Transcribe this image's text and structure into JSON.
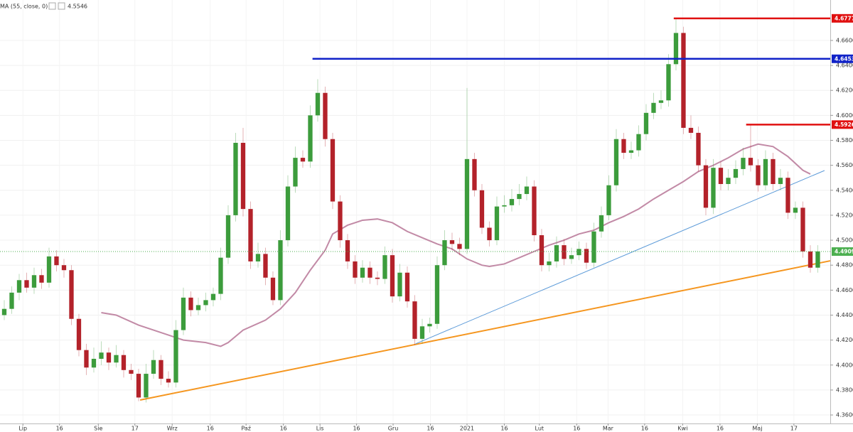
{
  "chart_data": {
    "type": "candlestick",
    "up_color": "#3c9c3c",
    "down_color": "#b3222a",
    "xlim": [
      -0.57,
      110.67
    ],
    "ylim": [
      4.3532,
      4.6924
    ],
    "xticks": [
      {
        "value": 2.5,
        "label": "Lip"
      },
      {
        "value": 7.4,
        "label": "16"
      },
      {
        "value": 12.6,
        "label": "Sie"
      },
      {
        "value": 17.5,
        "label": "17"
      },
      {
        "value": 22.5,
        "label": "Wrz"
      },
      {
        "value": 27.6,
        "label": "16"
      },
      {
        "value": 32.4,
        "label": "Paź"
      },
      {
        "value": 37.4,
        "label": "16"
      },
      {
        "value": 42.3,
        "label": "Lis"
      },
      {
        "value": 47.2,
        "label": "16"
      },
      {
        "value": 52.1,
        "label": "Gru"
      },
      {
        "value": 57.1,
        "label": "16"
      },
      {
        "value": 62,
        "label": "2021"
      },
      {
        "value": 67,
        "label": "16"
      },
      {
        "value": 71.7,
        "label": "Lut"
      },
      {
        "value": 76.7,
        "label": "16"
      },
      {
        "value": 80.9,
        "label": "Mar"
      },
      {
        "value": 85.8,
        "label": "16"
      },
      {
        "value": 90.9,
        "label": "Kwi"
      },
      {
        "value": 95.9,
        "label": "16"
      },
      {
        "value": 100.9,
        "label": "Maj"
      },
      {
        "value": 105.8,
        "label": "17"
      }
    ],
    "yticks": [
      {
        "value": 4.36,
        "label": "4.3600"
      },
      {
        "value": 4.38,
        "label": "4.3800"
      },
      {
        "value": 4.4,
        "label": "4.4000"
      },
      {
        "value": 4.42,
        "label": "4.4200"
      },
      {
        "value": 4.44,
        "label": "4.4400"
      },
      {
        "value": 4.46,
        "label": "4.4600"
      },
      {
        "value": 4.48,
        "label": "4.4800"
      },
      {
        "value": 4.5,
        "label": "4.5000"
      },
      {
        "value": 4.52,
        "label": "4.5200"
      },
      {
        "value": 4.54,
        "label": "4.5400"
      },
      {
        "value": 4.56,
        "label": "4.5600"
      },
      {
        "value": 4.58,
        "label": "4.5800"
      },
      {
        "value": 4.6,
        "label": "4.6000"
      },
      {
        "value": 4.62,
        "label": "4.6200"
      },
      {
        "value": 4.64,
        "label": "4.6400"
      },
      {
        "value": 4.66,
        "label": "4.6600"
      }
    ],
    "ohlc": [
      [
        4.44,
        4.452,
        4.436,
        4.445
      ],
      [
        4.445,
        4.463,
        4.441,
        4.458
      ],
      [
        4.458,
        4.473,
        4.452,
        4.468
      ],
      [
        4.468,
        4.474,
        4.458,
        4.462
      ],
      [
        4.462,
        4.478,
        4.457,
        4.472
      ],
      [
        4.472,
        4.477,
        4.461,
        4.466
      ],
      [
        4.466,
        4.494,
        4.462,
        4.487
      ],
      [
        4.487,
        4.492,
        4.475,
        4.48
      ],
      [
        4.48,
        4.485,
        4.47,
        4.476
      ],
      [
        4.476,
        4.48,
        4.432,
        4.437
      ],
      [
        4.437,
        4.441,
        4.407,
        4.412
      ],
      [
        4.412,
        4.417,
        4.392,
        4.398
      ],
      [
        4.398,
        4.414,
        4.394,
        4.405
      ],
      [
        4.405,
        4.419,
        4.4,
        4.41
      ],
      [
        4.41,
        4.414,
        4.396,
        4.402
      ],
      [
        4.402,
        4.416,
        4.398,
        4.408
      ],
      [
        4.408,
        4.412,
        4.39,
        4.396
      ],
      [
        4.396,
        4.401,
        4.388,
        4.393
      ],
      [
        4.393,
        4.397,
        4.371,
        4.374
      ],
      [
        4.374,
        4.401,
        4.37,
        4.393
      ],
      [
        4.393,
        4.412,
        4.389,
        4.404
      ],
      [
        4.404,
        4.408,
        4.384,
        4.389
      ],
      [
        4.389,
        4.395,
        4.382,
        4.386
      ],
      [
        4.386,
        4.436,
        4.382,
        4.428
      ],
      [
        4.428,
        4.462,
        4.424,
        4.454
      ],
      [
        4.454,
        4.459,
        4.439,
        4.444
      ],
      [
        4.444,
        4.454,
        4.44,
        4.448
      ],
      [
        4.448,
        4.458,
        4.443,
        4.452
      ],
      [
        4.452,
        4.462,
        4.447,
        4.457
      ],
      [
        4.457,
        4.494,
        4.452,
        4.486
      ],
      [
        4.486,
        4.528,
        4.481,
        4.52
      ],
      [
        4.52,
        4.586,
        4.515,
        4.578
      ],
      [
        4.578,
        4.59,
        4.519,
        4.525
      ],
      [
        4.525,
        4.531,
        4.477,
        4.483
      ],
      [
        4.483,
        4.498,
        4.478,
        4.489
      ],
      [
        4.489,
        4.494,
        4.464,
        4.47
      ],
      [
        4.47,
        4.475,
        4.448,
        4.452
      ],
      [
        4.452,
        4.508,
        4.448,
        4.5
      ],
      [
        4.5,
        4.552,
        4.495,
        4.543
      ],
      [
        4.543,
        4.575,
        4.538,
        4.566
      ],
      [
        4.566,
        4.572,
        4.558,
        4.563
      ],
      [
        4.563,
        4.608,
        4.558,
        4.6
      ],
      [
        4.6,
        4.629,
        4.595,
        4.618
      ],
      [
        4.618,
        4.623,
        4.575,
        4.581
      ],
      [
        4.581,
        4.586,
        4.525,
        4.531
      ],
      [
        4.531,
        4.536,
        4.494,
        4.5
      ],
      [
        4.5,
        4.505,
        4.477,
        4.483
      ],
      [
        4.483,
        4.488,
        4.465,
        4.47
      ],
      [
        4.47,
        4.484,
        4.466,
        4.478
      ],
      [
        4.478,
        4.483,
        4.465,
        4.47
      ],
      [
        4.47,
        4.475,
        4.464,
        4.469
      ],
      [
        4.469,
        4.495,
        4.465,
        4.488
      ],
      [
        4.488,
        4.493,
        4.45,
        4.455
      ],
      [
        4.455,
        4.481,
        4.451,
        4.474
      ],
      [
        4.474,
        4.479,
        4.446,
        4.451
      ],
      [
        4.451,
        4.456,
        4.416,
        4.421
      ],
      [
        4.421,
        4.437,
        4.417,
        4.431
      ],
      [
        4.431,
        4.438,
        4.426,
        4.433
      ],
      [
        4.433,
        4.487,
        4.429,
        4.48
      ],
      [
        4.48,
        4.508,
        4.476,
        4.5
      ],
      [
        4.5,
        4.506,
        4.492,
        4.497
      ],
      [
        4.497,
        4.502,
        4.488,
        4.493
      ],
      [
        4.493,
        4.622,
        4.489,
        4.565
      ],
      [
        4.565,
        4.57,
        4.535,
        4.54
      ],
      [
        4.54,
        4.545,
        4.505,
        4.51
      ],
      [
        4.51,
        4.515,
        4.495,
        4.5
      ],
      [
        4.5,
        4.535,
        4.496,
        4.527
      ],
      [
        4.527,
        4.536,
        4.522,
        4.528
      ],
      [
        4.528,
        4.541,
        4.523,
        4.533
      ],
      [
        4.533,
        4.545,
        4.528,
        4.537
      ],
      [
        4.537,
        4.551,
        4.532,
        4.543
      ],
      [
        4.543,
        4.548,
        4.499,
        4.504
      ],
      [
        4.504,
        4.509,
        4.475,
        4.48
      ],
      [
        4.48,
        4.49,
        4.475,
        4.483
      ],
      [
        4.483,
        4.503,
        4.478,
        4.496
      ],
      [
        4.496,
        4.501,
        4.48,
        4.485
      ],
      [
        4.485,
        4.494,
        4.481,
        4.488
      ],
      [
        4.488,
        4.499,
        4.484,
        4.493
      ],
      [
        4.493,
        4.498,
        4.477,
        4.482
      ],
      [
        4.482,
        4.514,
        4.478,
        4.507
      ],
      [
        4.507,
        4.527,
        4.502,
        4.52
      ],
      [
        4.52,
        4.552,
        4.516,
        4.544
      ],
      [
        4.544,
        4.589,
        4.539,
        4.581
      ],
      [
        4.581,
        4.586,
        4.565,
        4.57
      ],
      [
        4.57,
        4.579,
        4.565,
        4.572
      ],
      [
        4.572,
        4.592,
        4.567,
        4.585
      ],
      [
        4.585,
        4.609,
        4.58,
        4.602
      ],
      [
        4.602,
        4.618,
        4.597,
        4.61
      ],
      [
        4.61,
        4.62,
        4.605,
        4.612
      ],
      [
        4.612,
        4.649,
        4.607,
        4.641
      ],
      [
        4.641,
        4.677,
        4.636,
        4.666
      ],
      [
        4.666,
        4.671,
        4.585,
        4.59
      ],
      [
        4.59,
        4.6,
        4.581,
        4.586
      ],
      [
        4.586,
        4.591,
        4.555,
        4.56
      ],
      [
        4.56,
        4.565,
        4.52,
        4.526
      ],
      [
        4.526,
        4.565,
        4.521,
        4.558
      ],
      [
        4.558,
        4.563,
        4.54,
        4.545
      ],
      [
        4.545,
        4.557,
        4.54,
        4.55
      ],
      [
        4.55,
        4.564,
        4.545,
        4.557
      ],
      [
        4.557,
        4.574,
        4.552,
        4.566
      ],
      [
        4.566,
        4.592,
        4.555,
        4.56
      ],
      [
        4.56,
        4.565,
        4.539,
        4.544
      ],
      [
        4.544,
        4.572,
        4.54,
        4.565
      ],
      [
        4.565,
        4.57,
        4.54,
        4.545
      ],
      [
        4.545,
        4.557,
        4.54,
        4.55
      ],
      [
        4.55,
        4.555,
        4.517,
        4.522
      ],
      [
        4.522,
        4.531,
        4.517,
        4.526
      ],
      [
        4.526,
        4.531,
        4.486,
        4.491
      ],
      [
        4.491,
        4.496,
        4.474,
        4.478
      ],
      [
        4.478,
        4.496,
        4.474,
        4.491
      ]
    ],
    "ma": {
      "name": "MA (55, close, 0)",
      "value": 4.5546,
      "color": "#c28aa6",
      "x": [
        13,
        15,
        18,
        20,
        22,
        24,
        27,
        29,
        30,
        32,
        35,
        37,
        39,
        41,
        43,
        44,
        46,
        48,
        50,
        52,
        54,
        56,
        58,
        60,
        62,
        64,
        65,
        67,
        69,
        71,
        73,
        75,
        77,
        79,
        81,
        83,
        85,
        87,
        89,
        91,
        93,
        95,
        97,
        99,
        101,
        103,
        105,
        107,
        108
      ],
      "values": [
        4.442,
        4.44,
        4.432,
        4.428,
        4.424,
        4.42,
        4.418,
        4.415,
        4.418,
        4.428,
        4.436,
        4.445,
        4.458,
        4.476,
        4.492,
        4.505,
        4.512,
        4.516,
        4.517,
        4.514,
        4.507,
        4.502,
        4.497,
        4.493,
        4.485,
        4.48,
        4.479,
        4.481,
        4.486,
        4.491,
        4.496,
        4.5,
        4.505,
        4.508,
        4.514,
        4.519,
        4.525,
        4.533,
        4.54,
        4.547,
        4.555,
        4.56,
        4.566,
        4.573,
        4.577,
        4.575,
        4.567,
        4.556,
        4.553
      ]
    },
    "levels": [
      {
        "value": 4.6777,
        "color": "#e01010",
        "from": 89.7
      },
      {
        "value": 4.6453,
        "color": "#1022c8",
        "from": 41.3
      },
      {
        "value": 4.5926,
        "color": "#e01010",
        "from": 99.4
      }
    ],
    "last": {
      "value": 4.4909,
      "color": "#4caf50"
    },
    "trendlines": [
      {
        "color": "#f5961f",
        "x": [
          18.2,
          110.67
        ],
        "values": [
          4.372,
          4.4835
        ]
      },
      {
        "color": "#5b9ad8",
        "x": [
          55.1,
          109.9
        ],
        "values": [
          4.417,
          4.5558
        ]
      }
    ]
  }
}
